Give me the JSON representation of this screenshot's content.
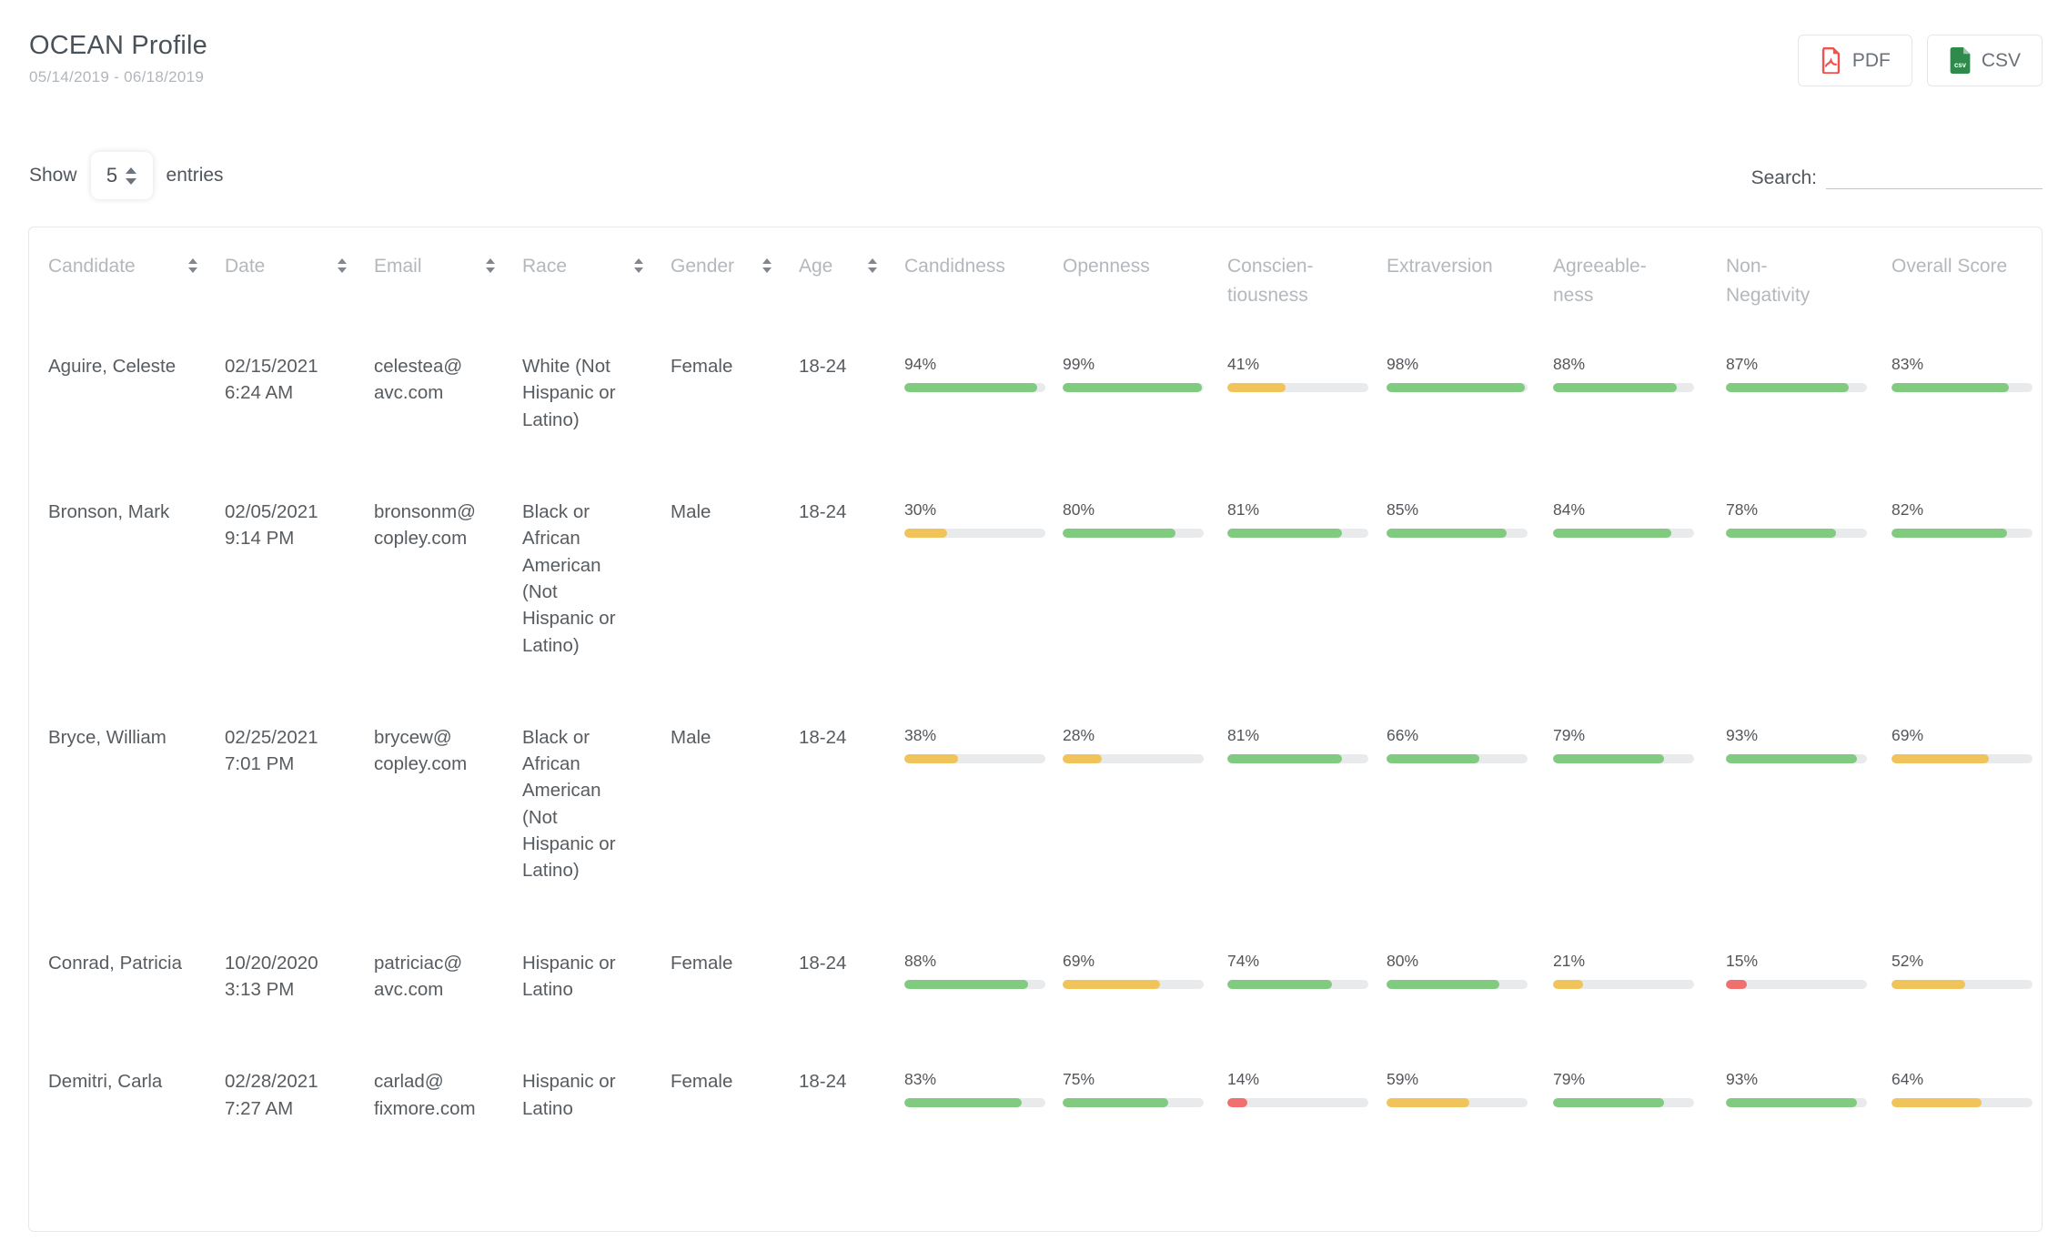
{
  "header": {
    "title": "OCEAN Profile",
    "date_range": "05/14/2019 - 06/18/2019",
    "pdf_label": "PDF",
    "csv_label": "CSV"
  },
  "controls": {
    "show_label": "Show",
    "entries_value": "5",
    "entries_label": "entries",
    "search_label": "Search:",
    "search_value": ""
  },
  "palette": {
    "green": "#80cb80",
    "yellow": "#f0c45a",
    "red": "#f07070",
    "track": "#e9eaec",
    "pdf_icon": "#ee5350",
    "csv_icon": "#2f8a4c"
  },
  "table": {
    "columns": [
      {
        "id": "candidate",
        "lines": [
          "Candidate"
        ],
        "sortable": true
      },
      {
        "id": "date",
        "lines": [
          "Date"
        ],
        "sortable": true
      },
      {
        "id": "email",
        "lines": [
          "Email"
        ],
        "sortable": true
      },
      {
        "id": "race",
        "lines": [
          "Race"
        ],
        "sortable": true
      },
      {
        "id": "gender",
        "lines": [
          "Gender"
        ],
        "sortable": true
      },
      {
        "id": "age",
        "lines": [
          "Age"
        ],
        "sortable": true
      },
      {
        "id": "candidness",
        "lines": [
          "Candidness"
        ],
        "sortable": false
      },
      {
        "id": "openness",
        "lines": [
          "Openness"
        ],
        "sortable": false
      },
      {
        "id": "conscientiousness",
        "lines": [
          "Conscien-",
          "tiousness"
        ],
        "sortable": false
      },
      {
        "id": "extraversion",
        "lines": [
          "Extraversion"
        ],
        "sortable": false
      },
      {
        "id": "agreeableness",
        "lines": [
          "Agreeable-",
          "ness"
        ],
        "sortable": false
      },
      {
        "id": "non_negativity",
        "lines": [
          "Non-",
          "Negativity"
        ],
        "sortable": false
      },
      {
        "id": "overall_score",
        "lines": [
          "Overall Score"
        ],
        "sortable": false
      }
    ],
    "rows": [
      {
        "candidate": "Aguire, Celeste",
        "date": "02/15/2021",
        "time": "6:24 AM",
        "email": "celestea@avc.com",
        "race": "White (Not Hispanic or Latino)",
        "gender": "Female",
        "age": "18-24",
        "scores": [
          {
            "value": 94,
            "level": "green"
          },
          {
            "value": 99,
            "level": "green"
          },
          {
            "value": 41,
            "level": "yellow"
          },
          {
            "value": 98,
            "level": "green"
          },
          {
            "value": 88,
            "level": "green"
          },
          {
            "value": 87,
            "level": "green"
          },
          {
            "value": 83,
            "level": "green"
          }
        ]
      },
      {
        "candidate": "Bronson, Mark",
        "date": "02/05/2021",
        "time": "9:14 PM",
        "email": "bronsonm@copley.com",
        "race": "Black or African American (Not Hispanic or Latino)",
        "gender": "Male",
        "age": "18-24",
        "scores": [
          {
            "value": 30,
            "level": "yellow"
          },
          {
            "value": 80,
            "level": "green"
          },
          {
            "value": 81,
            "level": "green"
          },
          {
            "value": 85,
            "level": "green"
          },
          {
            "value": 84,
            "level": "green"
          },
          {
            "value": 78,
            "level": "green"
          },
          {
            "value": 82,
            "level": "green"
          }
        ]
      },
      {
        "candidate": "Bryce, William",
        "date": "02/25/2021",
        "time": "7:01 PM",
        "email": "brycew@copley.com",
        "race": "Black or African American (Not Hispanic or Latino)",
        "gender": "Male",
        "age": "18-24",
        "scores": [
          {
            "value": 38,
            "level": "yellow"
          },
          {
            "value": 28,
            "level": "yellow"
          },
          {
            "value": 81,
            "level": "green"
          },
          {
            "value": 66,
            "level": "green"
          },
          {
            "value": 79,
            "level": "green"
          },
          {
            "value": 93,
            "level": "green"
          },
          {
            "value": 69,
            "level": "yellow"
          }
        ]
      },
      {
        "candidate": "Conrad, Patricia",
        "date": "10/20/2020",
        "time": "3:13 PM",
        "email": "patriciac@avc.com",
        "race": "Hispanic or Latino",
        "gender": "Female",
        "age": "18-24",
        "scores": [
          {
            "value": 88,
            "level": "green"
          },
          {
            "value": 69,
            "level": "yellow"
          },
          {
            "value": 74,
            "level": "green"
          },
          {
            "value": 80,
            "level": "green"
          },
          {
            "value": 21,
            "level": "yellow"
          },
          {
            "value": 15,
            "level": "red"
          },
          {
            "value": 52,
            "level": "yellow"
          }
        ]
      },
      {
        "candidate": "Demitri, Carla",
        "date": "02/28/2021",
        "time": "7:27 AM",
        "email": "carlad@fixmore.com",
        "race": "Hispanic or Latino",
        "gender": "Female",
        "age": "18-24",
        "scores": [
          {
            "value": 83,
            "level": "green"
          },
          {
            "value": 75,
            "level": "green"
          },
          {
            "value": 14,
            "level": "red"
          },
          {
            "value": 59,
            "level": "yellow"
          },
          {
            "value": 79,
            "level": "green"
          },
          {
            "value": 93,
            "level": "green"
          },
          {
            "value": 64,
            "level": "yellow"
          }
        ]
      }
    ]
  }
}
